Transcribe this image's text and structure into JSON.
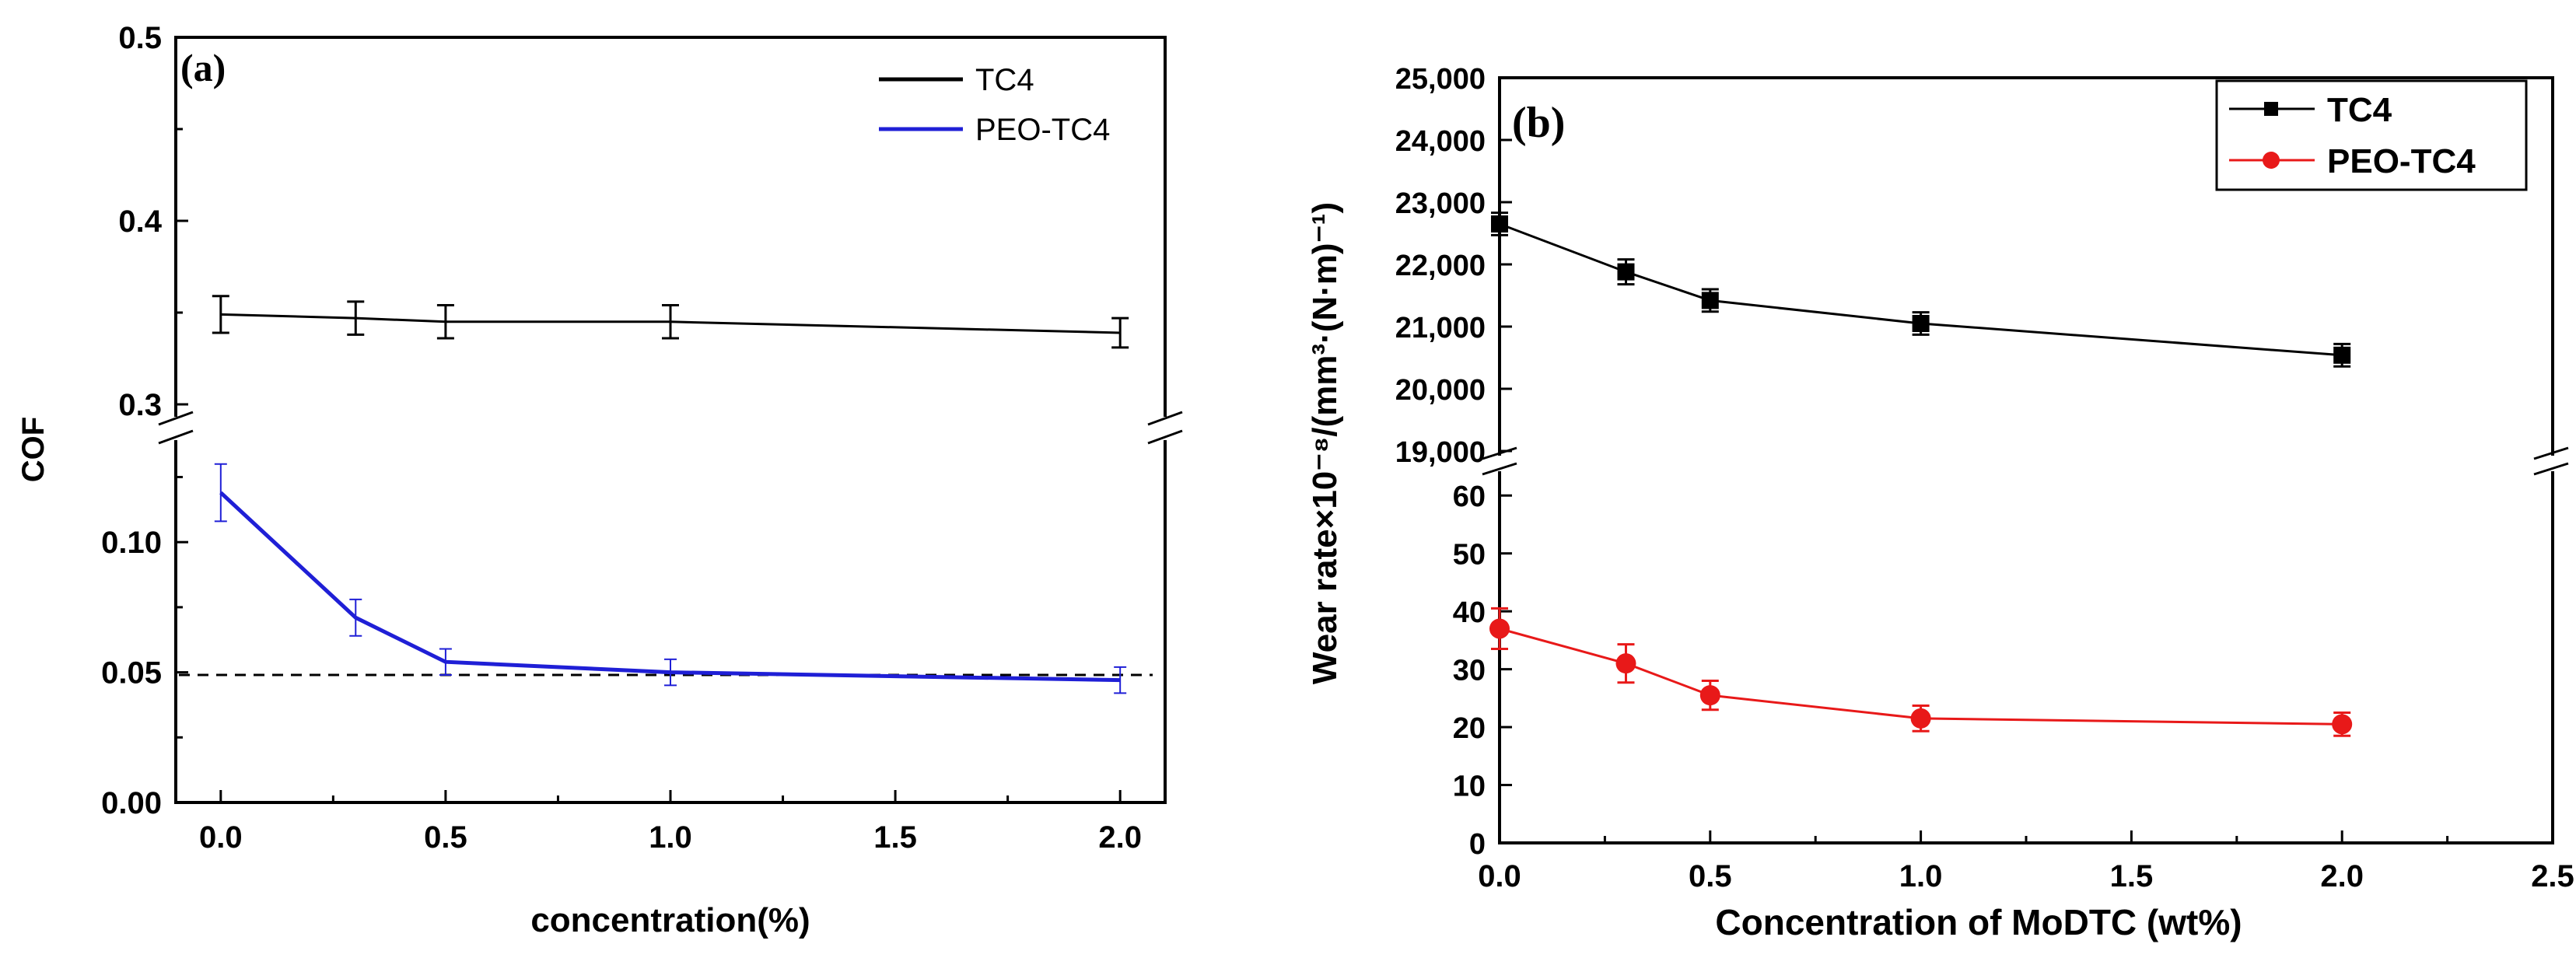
{
  "chart_data": [
    {
      "type": "line",
      "panel_label": "(a)",
      "xlabel": "concentration(%)",
      "ylabel": "COF",
      "x_ticks": [
        "0.0",
        "0.5",
        "1.0",
        "1.5",
        "2.0"
      ],
      "xlim": [
        -0.1,
        2.1
      ],
      "y_lower_ticks": [
        "0.00",
        "0.05",
        "0.10"
      ],
      "y_upper_ticks": [
        "0.3",
        "0.4",
        "0.5"
      ],
      "ylim_lower": [
        0,
        0.135
      ],
      "ylim_upper": [
        0.3,
        0.5
      ],
      "axis_break": "between 0.135 and 0.3",
      "reference_line": {
        "y": 0.049,
        "style": "dashed"
      },
      "legend_placement": "top-right",
      "series": [
        {
          "name": "TC4",
          "color": "#000000",
          "x": [
            0,
            0.3,
            0.5,
            1.0,
            2.0
          ],
          "y": [
            0.349,
            0.347,
            0.345,
            0.345,
            0.339
          ],
          "err": [
            0.01,
            0.009,
            0.009,
            0.009,
            0.008
          ]
        },
        {
          "name": "PEO-TC4",
          "color": "#1f1fd6",
          "x": [
            0,
            0.3,
            0.5,
            1.0,
            2.0
          ],
          "y": [
            0.119,
            0.071,
            0.054,
            0.05,
            0.047
          ],
          "err": [
            0.011,
            0.007,
            0.005,
            0.005,
            0.005
          ]
        }
      ]
    },
    {
      "type": "line",
      "panel_label": "(b)",
      "xlabel": "Concentration of MoDTC (wt%)",
      "ylabel": "Wear rate×10⁻⁸/(mm³·(N·m)⁻¹)",
      "x_ticks": [
        "0.0",
        "0.5",
        "1.0",
        "1.5",
        "2.0",
        "2.5"
      ],
      "xlim": [
        0,
        2.5
      ],
      "y_lower_ticks": [
        "0",
        "10",
        "20",
        "30",
        "40",
        "50",
        "60"
      ],
      "y_upper_ticks": [
        "19,000",
        "20,000",
        "21,000",
        "22,000",
        "23,000",
        "24,000",
        "25,000"
      ],
      "ylim_lower": [
        0,
        65
      ],
      "ylim_upper": [
        19000,
        25000
      ],
      "axis_break": "between 65 and 19,000",
      "legend_placement": "top-right",
      "series": [
        {
          "name": "TC4",
          "color": "#000000",
          "marker": "square",
          "x": [
            0,
            0.3,
            0.5,
            1.0,
            2.0
          ],
          "y": [
            22650,
            21880,
            21420,
            21050,
            20540
          ],
          "err": [
            180,
            200,
            180,
            180,
            180
          ]
        },
        {
          "name": "PEO-TC4",
          "color": "#e81919",
          "marker": "circle",
          "x": [
            0,
            0.3,
            0.5,
            1.0,
            2.0
          ],
          "y": [
            37,
            31,
            25.5,
            21.5,
            20.5
          ],
          "err": [
            3.5,
            3.3,
            2.5,
            2.2,
            2
          ]
        }
      ]
    }
  ]
}
